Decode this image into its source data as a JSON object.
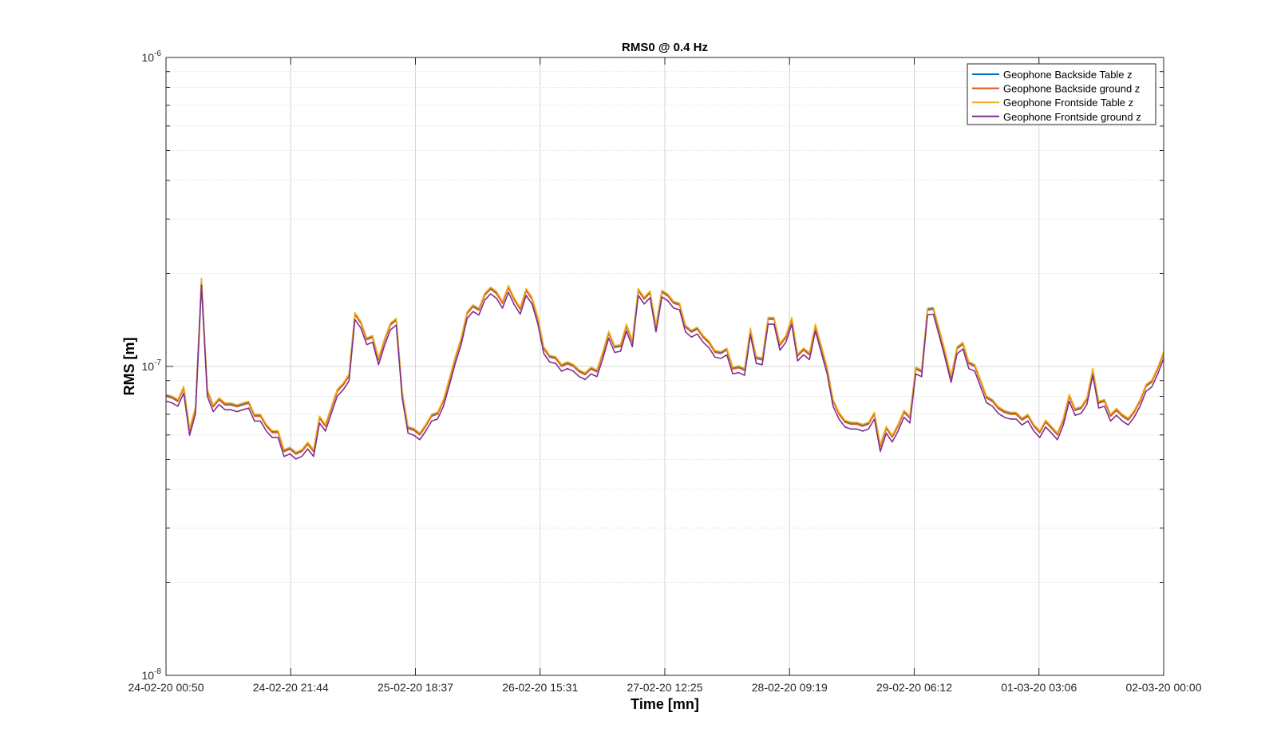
{
  "chart_data": {
    "type": "line",
    "title": "RMS0 @ 0.4 Hz",
    "xlabel": "Time [mn]",
    "ylabel": "RMS [m]",
    "yscale": "log",
    "ylim": [
      1e-08,
      1e-06
    ],
    "y_ticks": [
      {
        "value": 1e-08,
        "base": "10",
        "exp": "-8"
      },
      {
        "value": 1e-07,
        "base": "10",
        "exp": "-7"
      },
      {
        "value": 1e-06,
        "base": "10",
        "exp": "-6"
      }
    ],
    "xlim": [
      "2020-02-24 00:50",
      "2020-03-02 00:00"
    ],
    "x_tick_labels": [
      "24-02-20 00:50",
      "24-02-20 21:44",
      "25-02-20 18:37",
      "26-02-20 15:31",
      "27-02-20 12:25",
      "28-02-20 09:19",
      "29-02-20 06:12",
      "01-03-20 03:06",
      "02-03-20 00:00"
    ],
    "grid": true,
    "legend_position": "top-right",
    "base_values": [
      8e-08,
      7.9e-08,
      7.7e-08,
      8.5e-08,
      6.2e-08,
      7.3e-08,
      1.9e-07,
      8.3e-08,
      7.4e-08,
      7.8e-08,
      7.5e-08,
      7.5e-08,
      7.4e-08,
      7.5e-08,
      7.6e-08,
      6.9e-08,
      6.9e-08,
      6.4e-08,
      6.1e-08,
      6.1e-08,
      5.3e-08,
      5.4e-08,
      5.2e-08,
      5.3e-08,
      5.6e-08,
      5.3e-08,
      6.8e-08,
      6.4e-08,
      7.3e-08,
      8.3e-08,
      8.7e-08,
      9.3e-08,
      1.47e-07,
      1.38e-07,
      1.22e-07,
      1.24e-07,
      1.05e-07,
      1.21e-07,
      1.36e-07,
      1.41e-07,
      8.2e-08,
      6.3e-08,
      6.2e-08,
      6e-08,
      6.4e-08,
      6.9e-08,
      7e-08,
      7.7e-08,
      9e-08,
      1.06e-07,
      1.22e-07,
      1.48e-07,
      1.56e-07,
      1.52e-07,
      1.7e-07,
      1.78e-07,
      1.72e-07,
      1.6e-07,
      1.8e-07,
      1.64e-07,
      1.53e-07,
      1.76e-07,
      1.65e-07,
      1.42e-07,
      1.14e-07,
      1.07e-07,
      1.06e-07,
      1e-07,
      1.02e-07,
      1e-07,
      9.6e-08,
      9.4e-08,
      9.8e-08,
      9.6e-08,
      1.1e-07,
      1.28e-07,
      1.15e-07,
      1.16e-07,
      1.35e-07,
      1.2e-07,
      1.76e-07,
      1.65e-07,
      1.73e-07,
      1.34e-07,
      1.74e-07,
      1.69e-07,
      1.6e-07,
      1.58e-07,
      1.34e-07,
      1.29e-07,
      1.32e-07,
      1.24e-07,
      1.19e-07,
      1.11e-07,
      1.1e-07,
      1.13e-07,
      9.8e-08,
      9.9e-08,
      9.7e-08,
      1.31e-07,
      1.06e-07,
      1.05e-07,
      1.42e-07,
      1.42e-07,
      1.17e-07,
      1.24e-07,
      1.42e-07,
      1.08e-07,
      1.13e-07,
      1.09e-07,
      1.35e-07,
      1.15e-07,
      9.8e-08,
      7.7e-08,
      7e-08,
      6.6e-08,
      6.5e-08,
      6.5e-08,
      6.4e-08,
      6.5e-08,
      7e-08,
      5.5e-08,
      6.3e-08,
      5.9e-08,
      6.4e-08,
      7.1e-08,
      6.8e-08,
      9.8e-08,
      9.6e-08,
      1.52e-07,
      1.53e-07,
      1.3e-07,
      1.1e-07,
      9.2e-08,
      1.14e-07,
      1.18e-07,
      1.02e-07,
      1e-07,
      8.9e-08,
      7.9e-08,
      7.7e-08,
      7.3e-08,
      7.1e-08,
      7e-08,
      7e-08,
      6.7e-08,
      6.9e-08,
      6.4e-08,
      6.1e-08,
      6.6e-08,
      6.3e-08,
      6e-08,
      6.7e-08,
      8e-08,
      7.2e-08,
      7.3e-08,
      7.8e-08,
      9.7e-08,
      7.6e-08,
      7.7e-08,
      6.9e-08,
      7.2e-08,
      6.9e-08,
      6.7e-08,
      7.1e-08,
      7.7e-08,
      8.6e-08,
      8.9e-08,
      9.8e-08,
      1.1e-07
    ],
    "series": [
      {
        "name": "Geophone Backside Table z",
        "color": "#0072BD",
        "offset": 1.01
      },
      {
        "name": "Geophone Backside ground z",
        "color": "#D95319",
        "offset": 1.0
      },
      {
        "name": "Geophone Frontside Table z",
        "color": "#EDB120",
        "offset": 1.015
      },
      {
        "name": "Geophone Frontside ground z",
        "color": "#7E2F8E",
        "offset": 0.965
      }
    ]
  }
}
